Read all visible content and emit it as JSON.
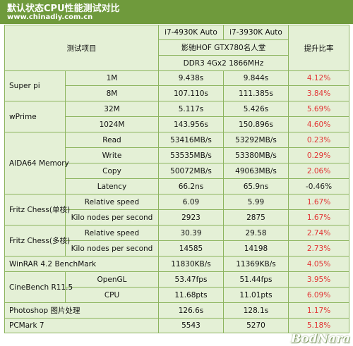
{
  "header": {
    "title": "默认状态CPU性能测试对比",
    "site": "www.chinadiy.com.cn"
  },
  "table": {
    "test_item_label": "测试项目",
    "cpu_a": "i7-4930K Auto",
    "cpu_b": "i7-3930K Auto",
    "gpu": "影驰HOF GTX780名人堂",
    "memory": "DDR3 4Gx2 1866MHz",
    "improvement_label": "提升比率",
    "rows": [
      {
        "group": "Super pi",
        "sub": "1M",
        "a": "9.438s",
        "b": "9.844s",
        "pct": "4.12%"
      },
      {
        "group": "",
        "sub": "8M",
        "a": "107.110s",
        "b": "111.385s",
        "pct": "3.84%"
      },
      {
        "group": "wPrime",
        "sub": "32M",
        "a": "5.117s",
        "b": "5.426s",
        "pct": "5.69%"
      },
      {
        "group": "",
        "sub": "1024M",
        "a": "143.956s",
        "b": "150.896s",
        "pct": "4.60%"
      },
      {
        "group": "AIDA64 Memory",
        "sub": "Read",
        "a": "53416MB/s",
        "b": "53292MB/s",
        "pct": "0.23%"
      },
      {
        "group": "",
        "sub": "Write",
        "a": "53535MB/s",
        "b": "53380MB/s",
        "pct": "0.29%"
      },
      {
        "group": "",
        "sub": "Copy",
        "a": "50072MB/s",
        "b": "49063MB/s",
        "pct": "2.06%"
      },
      {
        "group": "",
        "sub": "Latency",
        "a": "66.2ns",
        "b": "65.9ns",
        "pct": "-0.46%"
      },
      {
        "group": "Fritz Chess(单核)",
        "sub": "Relative speed",
        "a": "6.09",
        "b": "5.99",
        "pct": "1.67%"
      },
      {
        "group": "",
        "sub": "Kilo nodes per second",
        "a": "2923",
        "b": "2875",
        "pct": "1.67%"
      },
      {
        "group": "Fritz Chess(多核)",
        "sub": "Relative speed",
        "a": "30.39",
        "b": "29.58",
        "pct": "2.74%"
      },
      {
        "group": "",
        "sub": "Kilo nodes per second",
        "a": "14585",
        "b": "14198",
        "pct": "2.73%"
      },
      {
        "group": "WinRAR 4.2 BenchMark",
        "sub": "",
        "a": "11830KB/s",
        "b": "11369KB/s",
        "pct": "4.05%"
      },
      {
        "group": "CineBench R11.5",
        "sub": "OpenGL",
        "a": "53.47fps",
        "b": "51.44fps",
        "pct": "3.95%"
      },
      {
        "group": "",
        "sub": "CPU",
        "a": "11.68pts",
        "b": "11.01pts",
        "pct": "6.09%"
      },
      {
        "group": "Photoshop 图片处理",
        "sub": "",
        "a": "126.6s",
        "b": "128.1s",
        "pct": "1.17%"
      },
      {
        "group": "PCMark 7",
        "sub": "",
        "a": "5543",
        "b": "5270",
        "pct": "5.18%"
      }
    ]
  },
  "watermark": "BodNara"
}
